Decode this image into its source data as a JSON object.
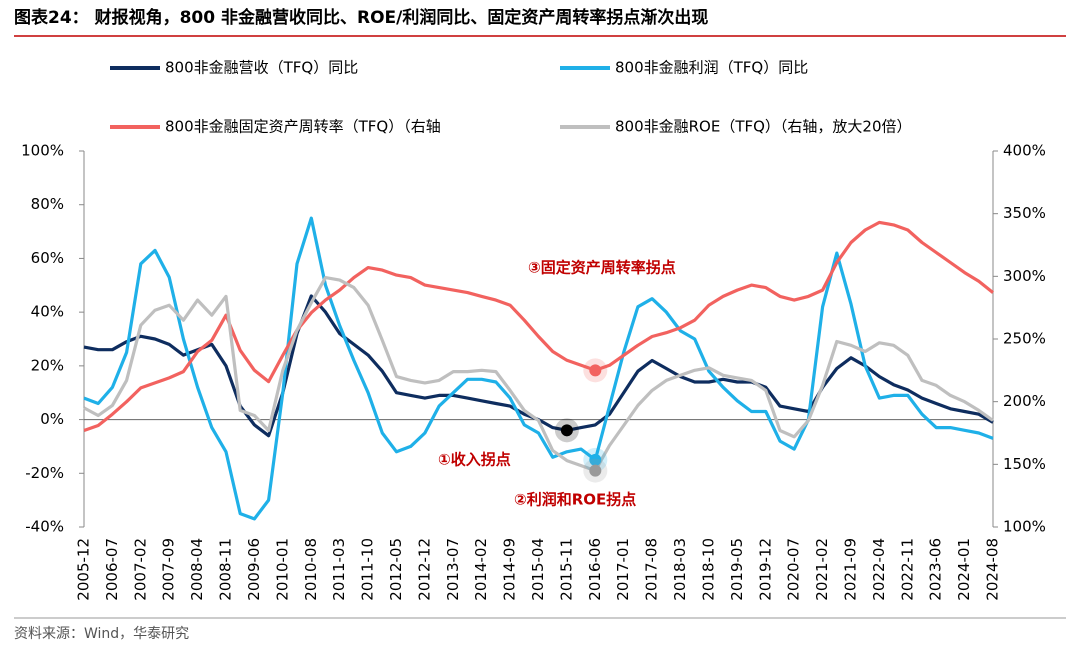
{
  "chart_data": {
    "type": "line",
    "title": "图表24： 财报视角，800 非金融营收同比、ROE/利润同比、固定资产周转率拐点渐次出现",
    "source": "资料来源：Wind，华泰研究",
    "annotations": [
      "①收入拐点",
      "②利润和ROE拐点",
      "③固定资产周转率拐点"
    ],
    "categories": [
      "2005-12",
      null,
      "2006-07",
      null,
      "2007-02",
      null,
      "2007-09",
      null,
      "2008-04",
      null,
      "2008-11",
      null,
      "2009-06",
      null,
      "2010-01",
      null,
      "2010-08",
      null,
      "2011-03",
      null,
      "2011-10",
      null,
      "2012-05",
      null,
      "2012-12",
      null,
      "2013-07",
      null,
      "2014-02",
      null,
      "2014-09",
      null,
      "2015-04",
      null,
      "2015-11",
      null,
      "2016-06",
      null,
      "2017-01",
      null,
      "2017-08",
      null,
      "2018-03",
      null,
      "2018-10",
      null,
      "2019-05",
      null,
      "2019-12",
      null,
      "2020-07",
      null,
      "2021-02",
      null,
      "2021-09",
      null,
      "2022-04",
      null,
      "2022-11",
      null,
      "2023-06",
      null,
      "2024-01",
      null,
      "2024-08"
    ],
    "series": [
      {
        "name": "800非金融营收（TFQ）同比",
        "color": "#0e2d5f",
        "axis": "y",
        "values": [
          27,
          26,
          26,
          29,
          31,
          30,
          28,
          24,
          26,
          28,
          20,
          5,
          -2,
          -6,
          10,
          32,
          46,
          40,
          32,
          28,
          24,
          18,
          10,
          9,
          8,
          9,
          9,
          8,
          7,
          6,
          5,
          2,
          0,
          -3,
          -4,
          -3,
          -2,
          2,
          10,
          18,
          22,
          19,
          16,
          14,
          14,
          15,
          14,
          14,
          12,
          5,
          4,
          3,
          12,
          19,
          23,
          20,
          16,
          13,
          11,
          8,
          6,
          4,
          3,
          2,
          -1
        ]
      },
      {
        "name": "800非金融利润（TFQ）同比",
        "color": "#1fb0e8",
        "axis": "y",
        "values": [
          8,
          6,
          12,
          25,
          58,
          63,
          53,
          30,
          12,
          -3,
          -12,
          -35,
          -37,
          -30,
          10,
          58,
          75,
          50,
          35,
          22,
          10,
          -5,
          -12,
          -10,
          -5,
          5,
          10,
          15,
          15,
          14,
          8,
          -2,
          -5,
          -14,
          -12,
          -11,
          -15,
          5,
          25,
          42,
          45,
          40,
          33,
          30,
          18,
          12,
          7,
          3,
          3,
          -8,
          -11,
          0,
          42,
          62,
          43,
          20,
          8,
          9,
          9,
          2,
          -3,
          -3,
          -4,
          -5,
          -7
        ]
      },
      {
        "name": "800非金融固定资产周转率（TFQ）（右轴",
        "color": "#f2625f",
        "axis": "y2",
        "values": [
          177,
          181,
          190,
          200,
          211,
          215,
          219,
          224,
          240,
          249,
          269,
          241,
          225,
          216,
          237,
          257,
          271,
          281,
          289,
          299,
          307,
          305,
          301,
          299,
          293,
          291,
          289,
          287,
          284,
          281,
          277,
          265,
          252,
          240,
          233,
          229,
          225,
          229,
          237,
          245,
          252,
          255,
          259,
          265,
          277,
          284,
          289,
          293,
          291,
          284,
          281,
          284,
          289,
          311,
          327,
          337,
          343,
          341,
          337,
          327,
          319,
          311,
          303,
          296,
          287
        ]
      },
      {
        "name": "800非金融ROE（TFQ）（右轴，放大20倍）",
        "color": "#bfbfbf",
        "axis": "y2",
        "values": [
          195,
          189,
          197,
          217,
          261,
          273,
          277,
          265,
          281,
          269,
          284,
          193,
          189,
          177,
          225,
          257,
          279,
          299,
          297,
          291,
          277,
          249,
          220,
          217,
          215,
          217,
          224,
          224,
          225,
          224,
          209,
          193,
          185,
          161,
          153,
          149,
          145,
          165,
          181,
          197,
          209,
          217,
          221,
          225,
          227,
          221,
          219,
          217,
          209,
          177,
          172,
          185,
          213,
          248,
          245,
          240,
          247,
          245,
          237,
          217,
          213,
          205,
          200,
          193,
          185
        ]
      }
    ],
    "ylim": [
      -40,
      100
    ],
    "yticks": [
      {
        "value": -40,
        "label": "-40%"
      },
      {
        "value": -20,
        "label": "-20%"
      },
      {
        "value": 0,
        "label": "0%"
      },
      {
        "value": 20,
        "label": "20%"
      },
      {
        "value": 40,
        "label": "40%"
      },
      {
        "value": 60,
        "label": "60%"
      },
      {
        "value": 80,
        "label": "80%"
      },
      {
        "value": 100,
        "label": "100%"
      }
    ],
    "y2lim": [
      100,
      400
    ],
    "y2ticks": [
      {
        "value": 100,
        "label": "100%"
      },
      {
        "value": 150,
        "label": "150%"
      },
      {
        "value": 200,
        "label": "200%"
      },
      {
        "value": 250,
        "label": "250%"
      },
      {
        "value": 300,
        "label": "300%"
      },
      {
        "value": 350,
        "label": "350%"
      },
      {
        "value": 400,
        "label": "400%"
      }
    ]
  }
}
